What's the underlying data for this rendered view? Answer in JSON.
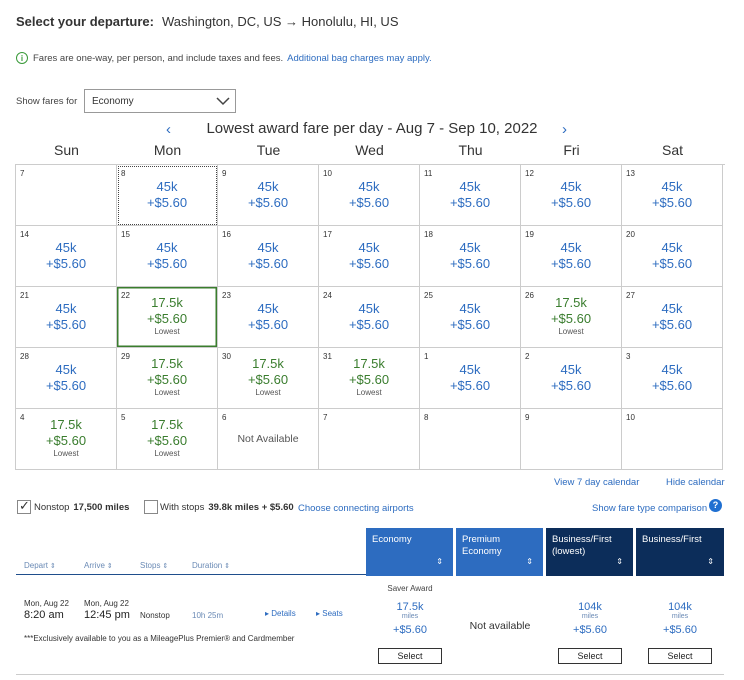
{
  "header": {
    "label": "Select your departure:",
    "route": "Washington, DC, US → Honolulu, HI, US"
  },
  "info": {
    "text": "Fares are one-way, per person, and include taxes and fees.",
    "link": "Additional bag charges may apply."
  },
  "fare_filter": {
    "label": "Show fares for",
    "value": "Economy"
  },
  "calendar": {
    "title": "Lowest award fare per day - Aug 7 - Sep 10, 2022",
    "prev": "‹",
    "next": "›",
    "weekdays": [
      "Sun",
      "Mon",
      "Tue",
      "Wed",
      "Thu",
      "Fri",
      "Sat"
    ],
    "cells": [
      {
        "day": "7",
        "miles": "",
        "fee": "",
        "label": ""
      },
      {
        "day": "8",
        "miles": "45k",
        "fee": "+$5.60",
        "label": ""
      },
      {
        "day": "9",
        "miles": "45k",
        "fee": "+$5.60",
        "label": ""
      },
      {
        "day": "10",
        "miles": "45k",
        "fee": "+$5.60",
        "label": ""
      },
      {
        "day": "11",
        "miles": "45k",
        "fee": "+$5.60",
        "label": ""
      },
      {
        "day": "12",
        "miles": "45k",
        "fee": "+$5.60",
        "label": ""
      },
      {
        "day": "13",
        "miles": "45k",
        "fee": "+$5.60",
        "label": ""
      },
      {
        "day": "14",
        "miles": "45k",
        "fee": "+$5.60",
        "label": ""
      },
      {
        "day": "15",
        "miles": "45k",
        "fee": "+$5.60",
        "label": ""
      },
      {
        "day": "16",
        "miles": "45k",
        "fee": "+$5.60",
        "label": ""
      },
      {
        "day": "17",
        "miles": "45k",
        "fee": "+$5.60",
        "label": ""
      },
      {
        "day": "18",
        "miles": "45k",
        "fee": "+$5.60",
        "label": ""
      },
      {
        "day": "19",
        "miles": "45k",
        "fee": "+$5.60",
        "label": ""
      },
      {
        "day": "20",
        "miles": "45k",
        "fee": "+$5.60",
        "label": ""
      },
      {
        "day": "21",
        "miles": "45k",
        "fee": "+$5.60",
        "label": ""
      },
      {
        "day": "22",
        "miles": "17.5k",
        "fee": "+$5.60",
        "label": "Lowest"
      },
      {
        "day": "23",
        "miles": "45k",
        "fee": "+$5.60",
        "label": ""
      },
      {
        "day": "24",
        "miles": "45k",
        "fee": "+$5.60",
        "label": ""
      },
      {
        "day": "25",
        "miles": "45k",
        "fee": "+$5.60",
        "label": ""
      },
      {
        "day": "26",
        "miles": "17.5k",
        "fee": "+$5.60",
        "label": "Lowest"
      },
      {
        "day": "27",
        "miles": "45k",
        "fee": "+$5.60",
        "label": ""
      },
      {
        "day": "28",
        "miles": "45k",
        "fee": "+$5.60",
        "label": ""
      },
      {
        "day": "29",
        "miles": "17.5k",
        "fee": "+$5.60",
        "label": "Lowest"
      },
      {
        "day": "30",
        "miles": "17.5k",
        "fee": "+$5.60",
        "label": "Lowest"
      },
      {
        "day": "31",
        "miles": "17.5k",
        "fee": "+$5.60",
        "label": "Lowest"
      },
      {
        "day": "1",
        "miles": "45k",
        "fee": "+$5.60",
        "label": ""
      },
      {
        "day": "2",
        "miles": "45k",
        "fee": "+$5.60",
        "label": ""
      },
      {
        "day": "3",
        "miles": "45k",
        "fee": "+$5.60",
        "label": ""
      },
      {
        "day": "4",
        "miles": "17.5k",
        "fee": "+$5.60",
        "label": "Lowest"
      },
      {
        "day": "5",
        "miles": "17.5k",
        "fee": "+$5.60",
        "label": "Lowest"
      },
      {
        "day": "6",
        "miles": "",
        "fee": "",
        "label": "",
        "note": "Not Available"
      },
      {
        "day": "7",
        "miles": "",
        "fee": "",
        "label": ""
      },
      {
        "day": "8",
        "miles": "",
        "fee": "",
        "label": ""
      },
      {
        "day": "9",
        "miles": "",
        "fee": "",
        "label": ""
      },
      {
        "day": "10",
        "miles": "",
        "fee": "",
        "label": ""
      }
    ],
    "view7": "View 7 day calendar",
    "hide": "Hide calendar"
  },
  "filters": {
    "nonstop_label": "Nonstop",
    "nonstop_value": "17,500 miles",
    "nonstop_checked": true,
    "stops_label": "With stops",
    "stops_value": "39.8k miles + $5.60",
    "stops_checked": false,
    "connecting": "Choose connecting airports",
    "compare": "Show fare type comparison"
  },
  "columns": {
    "depart": "Depart",
    "arrive": "Arrive",
    "stops": "Stops",
    "duration": "Duration",
    "economy": "Economy",
    "premium": "Premium Economy",
    "business_lowest": "Business/First (lowest)",
    "business": "Business/First"
  },
  "flight": {
    "depart_date": "Mon, Aug 22",
    "depart_time": "8:20 am",
    "arrive_date": "Mon, Aug 22",
    "arrive_time": "12:45 pm",
    "stops": "Nonstop",
    "duration": "10h 25m",
    "details": "Details",
    "seats": "Seats",
    "note": "***Exclusively available to you as a MileagePlus Premier® and Cardmember",
    "saver": "Saver Award",
    "economy_miles": "17.5k",
    "economy_fee": "+$5.60",
    "premium_na": "Not available",
    "bus1_miles": "104k",
    "bus1_fee": "+$5.60",
    "bus2_miles": "104k",
    "bus2_fee": "+$5.60",
    "miles_unit": "miles",
    "select": "Select"
  },
  "colors": {
    "link_blue": "#2d6cc0",
    "lowest_green": "#3a7d2e",
    "economy_header": "#2d6cc0",
    "business_header": "#0c2d5a"
  }
}
